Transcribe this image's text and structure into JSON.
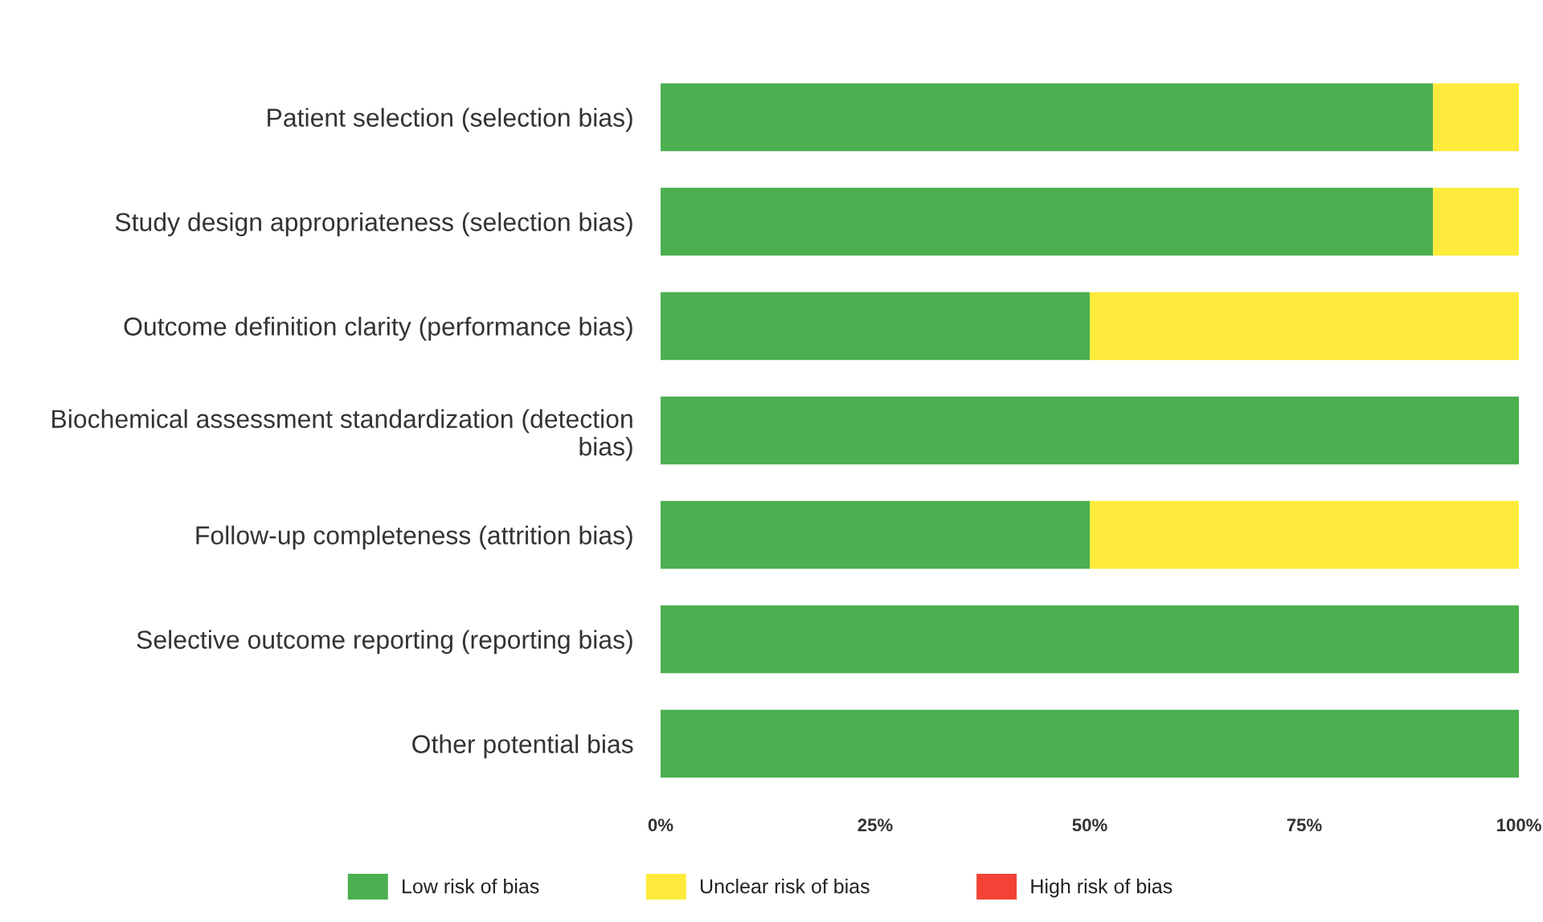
{
  "chart_data": {
    "type": "bar",
    "orientation": "horizontal",
    "stacked": true,
    "categories": [
      "Patient selection (selection bias)",
      "Study design appropriateness (selection bias)",
      "Outcome definition clarity (performance bias)",
      "Biochemical assessment standardization (detection bias)",
      "Follow-up completeness (attrition bias)",
      "Selective outcome reporting (reporting bias)",
      "Other potential bias"
    ],
    "series": [
      {
        "name": "Low risk of bias",
        "color": "#4caf50",
        "values": [
          90,
          90,
          50,
          100,
          50,
          100,
          100
        ]
      },
      {
        "name": "Unclear risk of bias",
        "color": "#ffeb3b",
        "values": [
          10,
          10,
          50,
          0,
          50,
          0,
          0
        ]
      },
      {
        "name": "High risk of bias",
        "color": "#f44336",
        "values": [
          0,
          0,
          0,
          0,
          0,
          0,
          0
        ]
      }
    ],
    "xlim": [
      0,
      100
    ],
    "xticks": [
      {
        "value": 0,
        "label": "0%"
      },
      {
        "value": 25,
        "label": "25%"
      },
      {
        "value": 50,
        "label": "50%"
      },
      {
        "value": 75,
        "label": "75%"
      },
      {
        "value": 100,
        "label": "100%"
      }
    ],
    "legend": "bottom",
    "grid": false
  }
}
